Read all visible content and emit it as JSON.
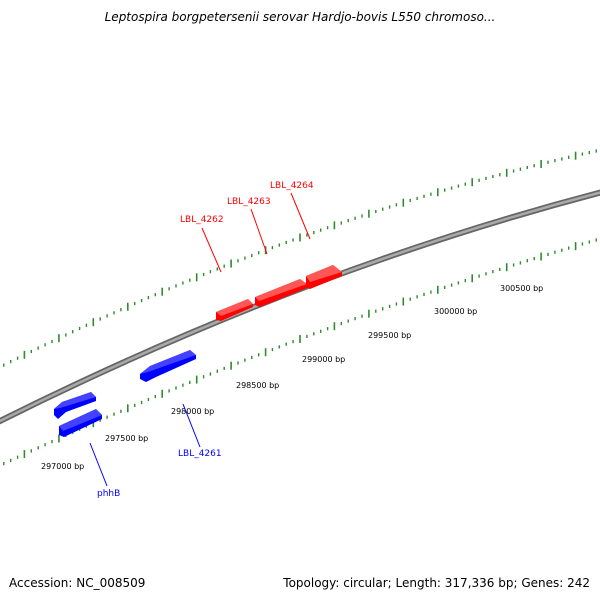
{
  "title": "Leptospira borgpetersenii serovar Hardjo-bovis L550 chromoso...",
  "footer": {
    "accession_label": "Accession:",
    "accession": "NC_008509",
    "topology_text": "Topology: circular; Length: 317,336 bp; Genes: 242"
  },
  "colors": {
    "forward_gene": "#ff0000",
    "reverse_gene": "#0000ff",
    "backbone": "#888888",
    "dotted_ring": "#2e8b2e"
  },
  "tick_labels": [
    "297000 bp",
    "297500 bp",
    "298000 bp",
    "298500 bp",
    "299000 bp",
    "299500 bp",
    "300000 bp",
    "300500 bp"
  ],
  "genes": [
    {
      "name": "LBL_4262",
      "strand": "forward"
    },
    {
      "name": "LBL_4263",
      "strand": "forward"
    },
    {
      "name": "LBL_4264",
      "strand": "forward"
    },
    {
      "name": "LBL_4261",
      "strand": "reverse"
    },
    {
      "name": "phhB",
      "strand": "reverse"
    }
  ]
}
